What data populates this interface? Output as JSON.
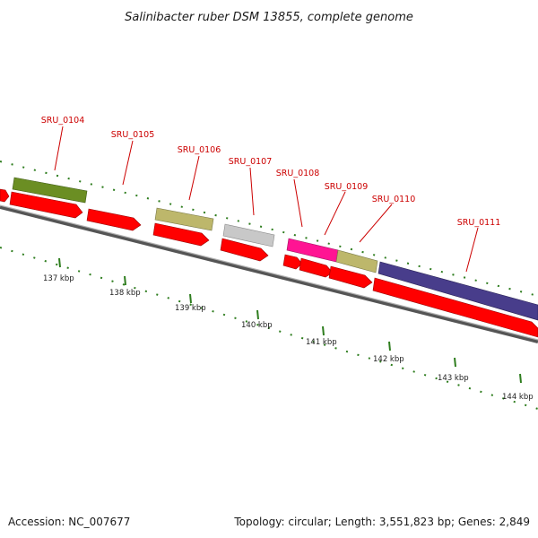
{
  "title": "Salinibacter ruber DSM 13855, complete genome",
  "footer": {
    "accession": "Accession: NC_007677",
    "topology": "Topology: circular; Length: 3,551,823 bp; Genes: 2,849"
  },
  "colors": {
    "cds": "#ff0000",
    "tick": "#2e7d1e",
    "backbone": "#8a8a8a",
    "label": "#cc0000"
  },
  "gene_labels": [
    "SRU_0104",
    "SRU_0105",
    "SRU_0106",
    "SRU_0107",
    "SRU_0108",
    "SRU_0109",
    "SRU_0110",
    "SRU_0111"
  ],
  "kbp_labels": [
    "137 kbp",
    "138 kbp",
    "139 kbp",
    "140 kbp",
    "141 kbp",
    "142 kbp",
    "143 kbp",
    "144 kbp"
  ],
  "cog_colors": [
    "#6b8e23",
    "#bdb76b",
    "#c0c0c0",
    "#ff1493",
    "#bdb76b",
    "#483d8b"
  ]
}
